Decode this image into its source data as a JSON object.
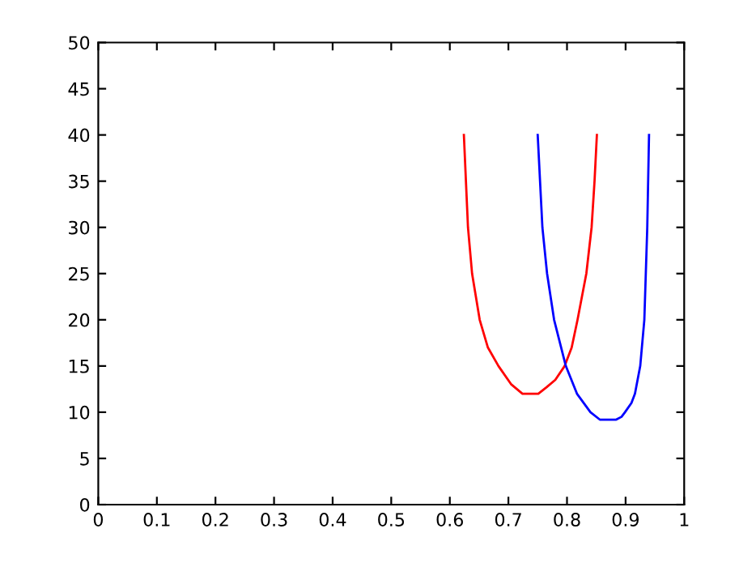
{
  "chart_data": {
    "type": "line",
    "xlim": [
      0,
      1
    ],
    "ylim": [
      0,
      50
    ],
    "xticks": [
      0,
      0.1,
      0.2,
      0.3,
      0.4,
      0.5,
      0.6,
      0.7,
      0.8,
      0.9,
      1
    ],
    "yticks": [
      0,
      5,
      10,
      15,
      20,
      25,
      30,
      35,
      40,
      45,
      50
    ],
    "grid": false,
    "legend": false,
    "series": [
      {
        "color": "#ff0000",
        "x": [
          0.624,
          0.631,
          0.638,
          0.651,
          0.665,
          0.683,
          0.705,
          0.724,
          0.74,
          0.751,
          0.765,
          0.78,
          0.796,
          0.808,
          0.818,
          0.833,
          0.842,
          0.847,
          0.851
        ],
        "values": [
          40,
          30,
          25,
          20,
          17,
          15,
          13,
          12,
          12,
          12,
          12.7,
          13.5,
          15,
          17,
          20,
          25,
          30,
          35,
          40
        ]
      },
      {
        "color": "#0000ff",
        "x": [
          0.75,
          0.758,
          0.766,
          0.778,
          0.798,
          0.817,
          0.84,
          0.856,
          0.87,
          0.884,
          0.893,
          0.899,
          0.91,
          0.916,
          0.925,
          0.932,
          0.937,
          0.94
        ],
        "values": [
          40,
          30,
          25,
          20,
          15,
          12,
          10,
          9.2,
          9.2,
          9.2,
          9.5,
          10,
          11,
          12,
          15,
          20,
          30,
          40
        ]
      }
    ]
  }
}
